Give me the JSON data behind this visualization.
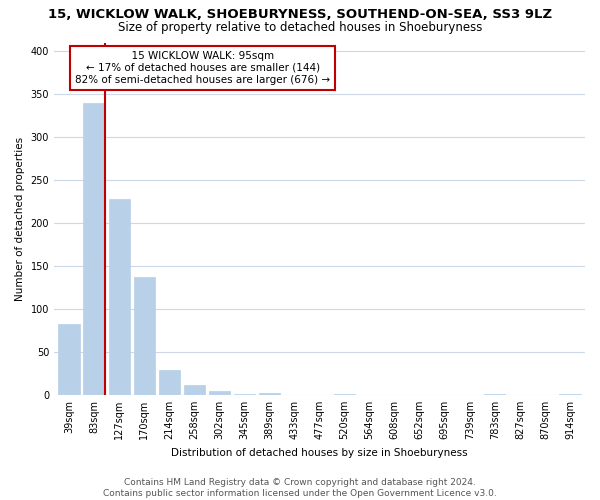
{
  "title": "15, WICKLOW WALK, SHOEBURYNESS, SOUTHEND-ON-SEA, SS3 9LZ",
  "subtitle": "Size of property relative to detached houses in Shoeburyness",
  "xlabel": "Distribution of detached houses by size in Shoeburyness",
  "ylabel": "Number of detached properties",
  "footer_line1": "Contains HM Land Registry data © Crown copyright and database right 2024.",
  "footer_line2": "Contains public sector information licensed under the Open Government Licence v3.0.",
  "annotation_title": "15 WICKLOW WALK: 95sqm",
  "annotation_line1": "← 17% of detached houses are smaller (144)",
  "annotation_line2": "82% of semi-detached houses are larger (676) →",
  "property_size_sqm": 95,
  "categories": [
    "39sqm",
    "83sqm",
    "127sqm",
    "170sqm",
    "214sqm",
    "258sqm",
    "302sqm",
    "345sqm",
    "389sqm",
    "433sqm",
    "477sqm",
    "520sqm",
    "564sqm",
    "608sqm",
    "652sqm",
    "695sqm",
    "739sqm",
    "783sqm",
    "827sqm",
    "870sqm",
    "914sqm"
  ],
  "values": [
    83,
    340,
    228,
    137,
    29,
    11,
    4,
    1,
    2,
    0,
    0,
    1,
    0,
    0,
    0,
    0,
    0,
    1,
    0,
    0,
    1
  ],
  "bar_color": "#b8d0e8",
  "property_line_color": "#c00000",
  "annotation_box_color": "#c00000",
  "background_color": "#ffffff",
  "grid_color": "#cdd8e8",
  "ylim": [
    0,
    410
  ],
  "yticks": [
    0,
    50,
    100,
    150,
    200,
    250,
    300,
    350,
    400
  ],
  "title_fontsize": 9.5,
  "subtitle_fontsize": 8.5,
  "axis_label_fontsize": 7.5,
  "tick_fontsize": 7,
  "annotation_fontsize": 7.5,
  "footer_fontsize": 6.5
}
